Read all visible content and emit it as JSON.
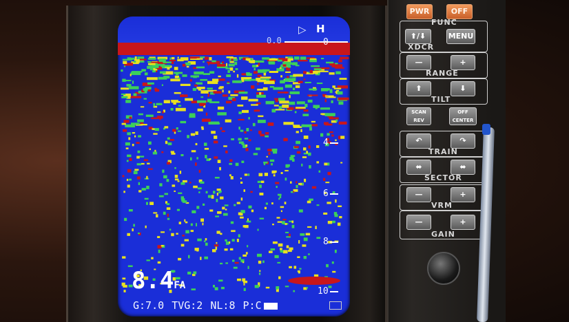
{
  "screen": {
    "mode_label": "H",
    "transducer_icon": "speaker-icon",
    "range_start": "0.0",
    "depth_scale": [
      "0",
      "4",
      "6",
      "8",
      "10"
    ],
    "depth_reading": {
      "value": "8.4",
      "unit": "FA"
    },
    "status": {
      "gain": "G:7.0",
      "tvg": "TVG:2",
      "nl": "NL:8",
      "power_prefix": "P:C"
    },
    "colors": {
      "background": "#1a2ed8",
      "strong_echo": "#c8161b",
      "medium_echo": "#e8e020",
      "weak_echo": "#3ccf5a"
    }
  },
  "panel": {
    "pwr": "PWR",
    "off": "OFF",
    "func": "FUNC",
    "xdcr_button": "⬆/⬇",
    "xdcr": "XDCR",
    "menu": "MENU",
    "range": "RANGE",
    "minus": "—",
    "plus": "+",
    "tilt": "TILT",
    "tilt_up": "⬆",
    "tilt_down": "⬇",
    "scan_rev": "SCAN REV",
    "off_center": "OFF CENTER",
    "train": "TRAIN",
    "train_left": "↶",
    "train_right": "↷",
    "sector": "SECTOR",
    "sector_narrow": "⬌",
    "sector_wide": "⬌",
    "vrm": "VRM",
    "gain": "GAIN"
  }
}
